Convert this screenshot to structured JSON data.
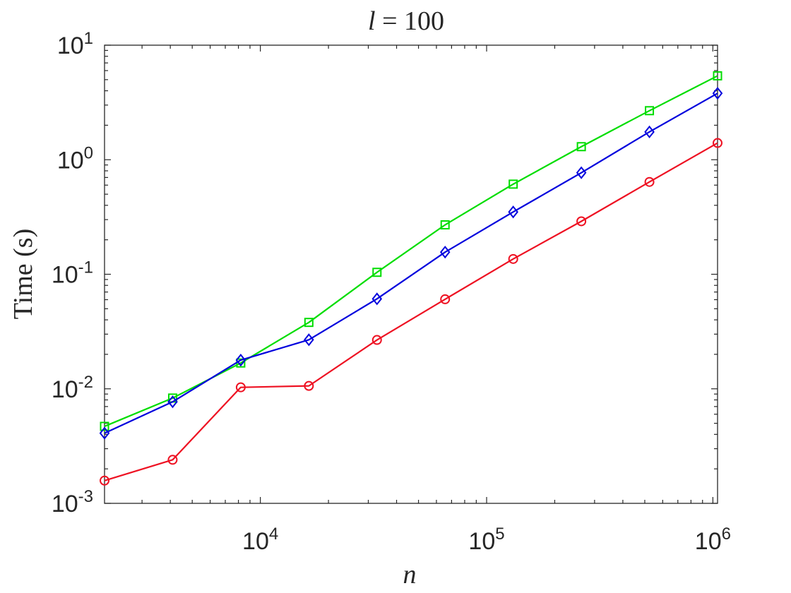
{
  "chart_data": {
    "type": "line",
    "title": "l = 100",
    "title_var": "l",
    "title_rest": " = 100",
    "xlabel": "n",
    "ylabel": "Time (s)",
    "x_scale": "log",
    "y_scale": "log",
    "xlim": [
      2048,
      1048576
    ],
    "ylim": [
      0.001,
      10
    ],
    "grid": false,
    "x_major_ticks": [
      {
        "value": 10000,
        "base": "10",
        "exp": "4"
      },
      {
        "value": 100000,
        "base": "10",
        "exp": "5"
      },
      {
        "value": 1000000,
        "base": "10",
        "exp": "6"
      }
    ],
    "y_major_ticks": [
      {
        "value": 0.001,
        "base": "10",
        "exp": "-3"
      },
      {
        "value": 0.01,
        "base": "10",
        "exp": "-2"
      },
      {
        "value": 0.1,
        "base": "10",
        "exp": "-1"
      },
      {
        "value": 1,
        "base": "10",
        "exp": "0"
      },
      {
        "value": 10,
        "base": "10",
        "exp": "1"
      }
    ],
    "x": [
      2048,
      4096,
      8192,
      16384,
      32768,
      65536,
      131072,
      262144,
      524288,
      1048576
    ],
    "series": [
      {
        "color": "#00dd00",
        "marker": "square",
        "values": [
          0.0047,
          0.0083,
          0.0168,
          0.038,
          0.104,
          0.27,
          0.612,
          1.3,
          2.68,
          5.4
        ]
      },
      {
        "color": "#0000dd",
        "marker": "diamond",
        "values": [
          0.0041,
          0.0077,
          0.0178,
          0.0268,
          0.061,
          0.156,
          0.35,
          0.77,
          1.75,
          3.8
        ]
      },
      {
        "color": "#ee1122",
        "marker": "circle",
        "values": [
          0.00158,
          0.0024,
          0.0103,
          0.0106,
          0.0267,
          0.0605,
          0.136,
          0.29,
          0.64,
          1.4
        ]
      }
    ]
  }
}
